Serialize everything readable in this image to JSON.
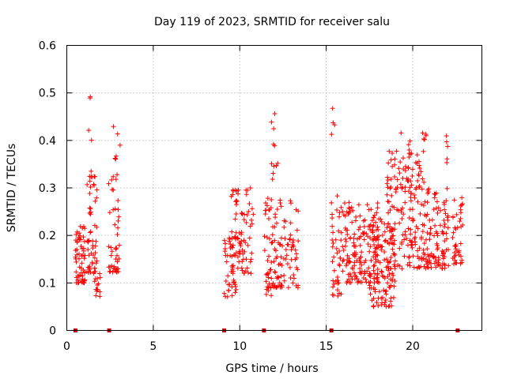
{
  "chart_data": {
    "type": "scatter",
    "title": "Day 119 of 2023, SRMTID for receiver salu",
    "xlabel": "GPS time / hours",
    "ylabel": "SRMTID / TECUs",
    "xlim": [
      0,
      24
    ],
    "ylim": [
      0,
      0.6
    ],
    "xticks": [
      0,
      5,
      10,
      15,
      20
    ],
    "yticks": [
      0,
      0.1,
      0.2,
      0.3,
      0.4,
      0.5,
      0.6
    ],
    "xtick_labels": [
      "0",
      "5",
      "10",
      "15",
      "20"
    ],
    "ytick_labels": [
      "0",
      "0.1",
      "0.2",
      "0.3",
      "0.4",
      "0.5",
      "0.6"
    ],
    "grid": true,
    "marker": "+",
    "series_color": "#ff0000",
    "gap_marker_color": "#cc0000",
    "gap_markers_x": [
      0.5,
      2.45,
      9.1,
      11.4,
      15.3,
      22.6
    ],
    "clusters": [
      {
        "x_start": 0.5,
        "x_end": 1.05,
        "y_min": 0.1,
        "y_max": 0.22,
        "n": 60
      },
      {
        "x_start": 1.15,
        "x_end": 1.75,
        "y_min": 0.12,
        "y_max": 0.35,
        "n": 55
      },
      {
        "x_start": 1.25,
        "x_end": 1.45,
        "y_min": 0.4,
        "y_max": 0.51,
        "n": 4
      },
      {
        "x_start": 1.6,
        "x_end": 2.0,
        "y_min": 0.07,
        "y_max": 0.15,
        "n": 15
      },
      {
        "x_start": 2.4,
        "x_end": 3.1,
        "y_min": 0.12,
        "y_max": 0.33,
        "n": 45
      },
      {
        "x_start": 2.7,
        "x_end": 3.1,
        "y_min": 0.35,
        "y_max": 0.44,
        "n": 6
      },
      {
        "x_start": 9.1,
        "x_end": 9.8,
        "y_min": 0.07,
        "y_max": 0.2,
        "n": 40
      },
      {
        "x_start": 9.5,
        "x_end": 10.8,
        "y_min": 0.12,
        "y_max": 0.3,
        "n": 80
      },
      {
        "x_start": 11.4,
        "x_end": 13.4,
        "y_min": 0.09,
        "y_max": 0.28,
        "n": 120
      },
      {
        "x_start": 11.8,
        "x_end": 12.3,
        "y_min": 0.3,
        "y_max": 0.47,
        "n": 12
      },
      {
        "x_start": 11.5,
        "x_end": 12.0,
        "y_min": 0.07,
        "y_max": 0.11,
        "n": 8
      },
      {
        "x_start": 15.3,
        "x_end": 16.0,
        "y_min": 0.07,
        "y_max": 0.3,
        "n": 45
      },
      {
        "x_start": 15.3,
        "x_end": 15.5,
        "y_min": 0.39,
        "y_max": 0.47,
        "n": 4
      },
      {
        "x_start": 16.0,
        "x_end": 18.0,
        "y_min": 0.1,
        "y_max": 0.27,
        "n": 160
      },
      {
        "x_start": 17.5,
        "x_end": 19.0,
        "y_min": 0.05,
        "y_max": 0.24,
        "n": 110
      },
      {
        "x_start": 18.5,
        "x_end": 20.5,
        "y_min": 0.13,
        "y_max": 0.38,
        "n": 150
      },
      {
        "x_start": 19.3,
        "x_end": 20.8,
        "y_min": 0.3,
        "y_max": 0.42,
        "n": 25
      },
      {
        "x_start": 20.5,
        "x_end": 22.1,
        "y_min": 0.13,
        "y_max": 0.3,
        "n": 120
      },
      {
        "x_start": 21.9,
        "x_end": 22.1,
        "y_min": 0.33,
        "y_max": 0.41,
        "n": 5
      },
      {
        "x_start": 22.3,
        "x_end": 22.9,
        "y_min": 0.14,
        "y_max": 0.28,
        "n": 40
      }
    ]
  }
}
